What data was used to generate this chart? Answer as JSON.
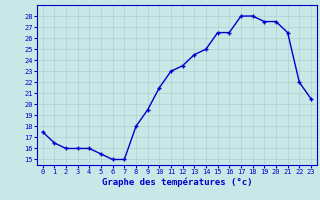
{
  "hours": [
    0,
    1,
    2,
    3,
    4,
    5,
    6,
    7,
    8,
    9,
    10,
    11,
    12,
    13,
    14,
    15,
    16,
    17,
    18,
    19,
    20,
    21,
    22,
    23
  ],
  "temperatures": [
    17.5,
    16.5,
    16.0,
    16.0,
    16.0,
    15.5,
    15.0,
    15.0,
    18.0,
    19.5,
    21.5,
    23.0,
    23.5,
    24.5,
    25.0,
    26.5,
    26.5,
    28.0,
    28.0,
    27.5,
    27.5,
    26.5,
    22.0,
    20.5
  ],
  "line_color": "#0000cc",
  "marker": "+",
  "bg_color": "#c8e8e8",
  "grid_color": "#b0d0d0",
  "axis_label_color": "#0000cc",
  "tick_label_color": "#0000cc",
  "xlabel": "Graphe des températures (°c)",
  "ylabel_ticks": [
    15,
    16,
    17,
    18,
    19,
    20,
    21,
    22,
    23,
    24,
    25,
    26,
    27,
    28
  ],
  "ylim": [
    14.5,
    29.0
  ],
  "xlim": [
    -0.5,
    23.5
  ]
}
